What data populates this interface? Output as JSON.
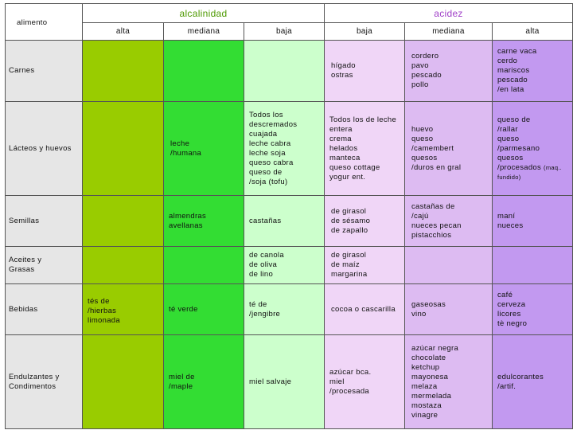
{
  "header": {
    "alimento_label": "alimento",
    "alcalinidad_label": "alcalinidad",
    "acidez_label": "acidez",
    "sub": [
      "alta",
      "mediana",
      "baja",
      "baja",
      "mediana",
      "alta"
    ]
  },
  "rows": [
    {
      "label": "Carnes",
      "cells": [
        "",
        "",
        "",
        "hígado\nostras",
        "cordero\npavo\npescado\npollo",
        "carne vaca\ncerdo\nmariscos\npescado\n    /en lata"
      ]
    },
    {
      "label": "Lácteos y huevos",
      "cells": [
        "",
        "leche\n    /humana",
        "Todos los\ndescremados\ncuajada\nleche cabra\nleche soja\nqueso cabra\nqueso de\n    /soja (tofu)",
        "Todos los de leche\nentera\ncrema\nhelados\nmanteca\nqueso cottage\nyogur ent.",
        "huevo\nqueso\n    /camembert\nquesos\n/duros en gral",
        "queso de\n         /rallar\nqueso\n/parmesano\nquesos\n/procesados"
      ]
    },
    {
      "label": "Semillas",
      "cells": [
        "",
        "almendras\navellanas",
        "castañas",
        "de girasol\nde sésamo\nde zapallo",
        "castañas de\n       /cajú\nnueces pecan\npistacchios",
        "maní\nnueces"
      ]
    },
    {
      "label": "Aceites y\nGrasas",
      "cells": [
        "",
        "",
        "de canola\nde oliva\nde lino",
        "de girasol\nde maíz\nmargarina",
        "",
        ""
      ]
    },
    {
      "label": "Bebidas",
      "cells": [
        "tés de\n      /hierbas\nlimonada",
        "té verde",
        "té de\n        /jengibre",
        "cocoa o cascarilla",
        "gaseosas\nvino",
        "café\ncerveza\nlicores\ntè negro"
      ]
    },
    {
      "label": "Endulzantes y\nCondimentos",
      "cells": [
        "",
        "miel de\n      /maple",
        "miel salvaje",
        "azúcar bca.\nmiel\n  /procesada",
        "azúcar negra\nchocolate\nketchup\nmayonesa\nmelaza\nmermelada\nmostaza\nvinagre",
        "edulcorantes\n           /artif."
      ]
    }
  ],
  "extra": {
    "procesados_note1": "(maq..",
    "procesados_note2": "fundido)"
  },
  "colors": {
    "alcalinidad_alta": "#99cc00",
    "alcalinidad_mediana": "#33dd33",
    "alcalinidad_baja": "#ccffcc",
    "acidez_baja": "#f0d6f7",
    "acidez_mediana": "#ddbbf2",
    "acidez_alta": "#c299f0",
    "alimento_col": "#e6e6e6"
  }
}
